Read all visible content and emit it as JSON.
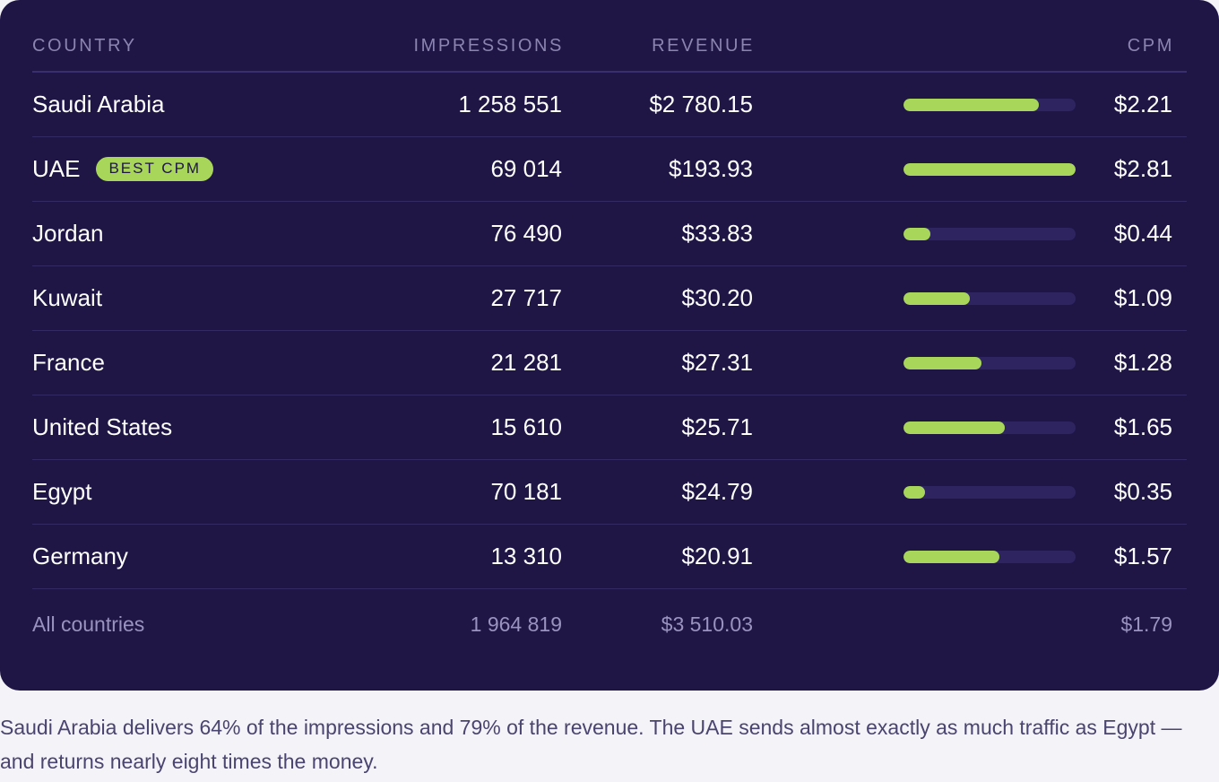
{
  "columns": {
    "country": "COUNTRY",
    "impressions": "IMPRESSIONS",
    "revenue": "REVENUE",
    "cpm": "CPM"
  },
  "colors": {
    "card_background": "#1f1646",
    "bar_fill": "#a7d65a",
    "bar_track": "#2d2460",
    "badge": "#a7d65a"
  },
  "rows": [
    {
      "country": "Saudi Arabia",
      "impressions": "1 258 551",
      "revenue": "$2 780.15",
      "cpm": "$2.21",
      "badge": "",
      "cpm_value": 2.21
    },
    {
      "country": "UAE",
      "impressions": "69 014",
      "revenue": "$193.93",
      "cpm": "$2.81",
      "badge": "BEST CPM",
      "cpm_value": 2.81
    },
    {
      "country": "Jordan",
      "impressions": "76 490",
      "revenue": "$33.83",
      "cpm": "$0.44",
      "badge": "",
      "cpm_value": 0.44
    },
    {
      "country": "Kuwait",
      "impressions": "27 717",
      "revenue": "$30.20",
      "cpm": "$1.09",
      "badge": "",
      "cpm_value": 1.09
    },
    {
      "country": "France",
      "impressions": "21 281",
      "revenue": "$27.31",
      "cpm": "$1.28",
      "badge": "",
      "cpm_value": 1.28
    },
    {
      "country": "United States",
      "impressions": "15 610",
      "revenue": "$25.71",
      "cpm": "$1.65",
      "badge": "",
      "cpm_value": 1.65
    },
    {
      "country": "Egypt",
      "impressions": "70 181",
      "revenue": "$24.79",
      "cpm": "$0.35",
      "badge": "",
      "cpm_value": 0.35
    },
    {
      "country": "Germany",
      "impressions": "13 310",
      "revenue": "$20.91",
      "cpm": "$1.57",
      "badge": "",
      "cpm_value": 1.57
    }
  ],
  "cpm_bar_max": 2.81,
  "total": {
    "country": "All countries",
    "impressions": "1 964 819",
    "revenue": "$3 510.03",
    "cpm": "$1.79"
  },
  "caption": "Saudi Arabia delivers 64% of the impressions and 79% of the revenue. The UAE sends almost exactly as much traffic as Egypt — and returns nearly eight times the money."
}
